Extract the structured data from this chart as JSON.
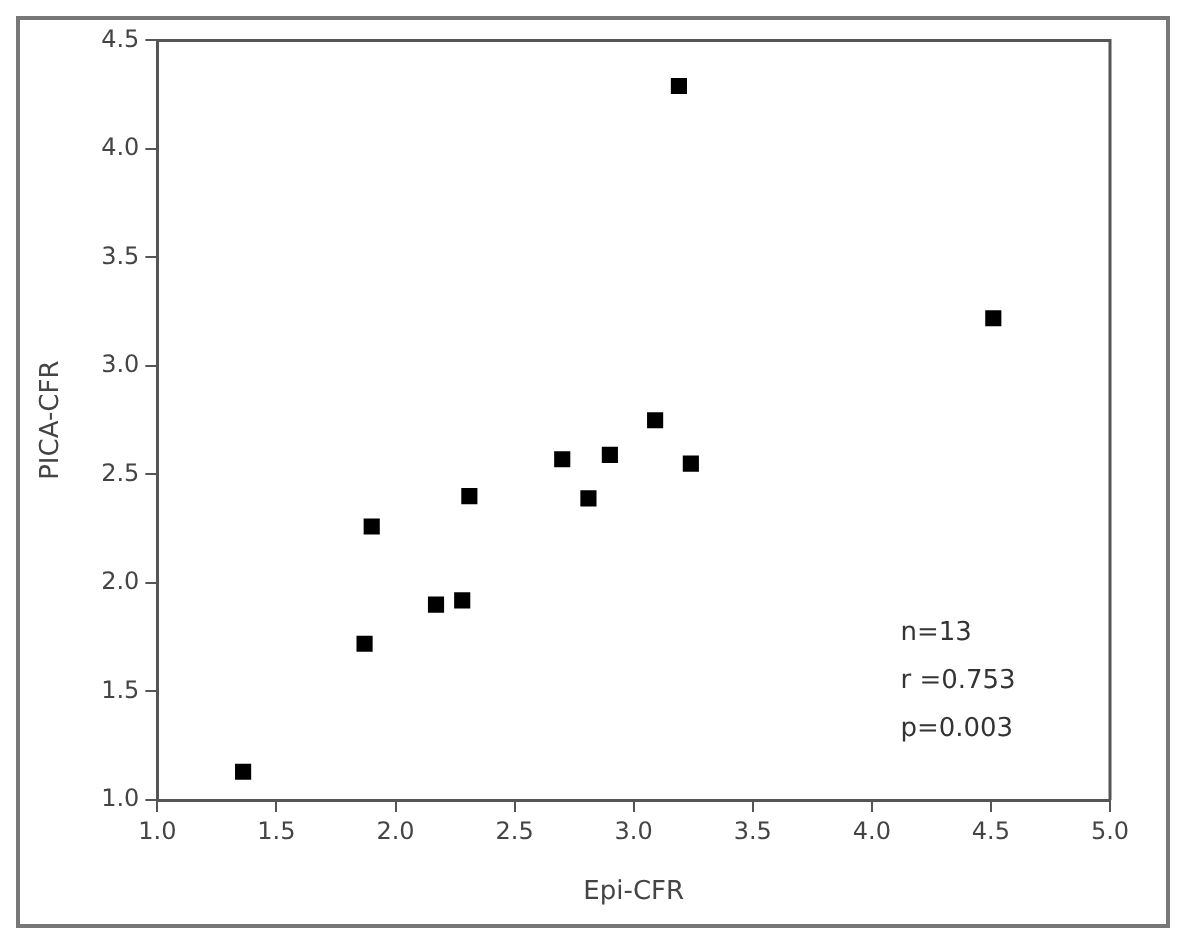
{
  "chart_data": {
    "type": "scatter",
    "xlabel": "Epi-CFR",
    "ylabel": "PICA-CFR",
    "x": [
      1.36,
      1.87,
      1.9,
      2.17,
      2.28,
      2.31,
      2.7,
      2.81,
      2.9,
      3.09,
      3.24,
      3.19,
      4.51
    ],
    "values": [
      1.13,
      1.72,
      2.26,
      1.9,
      1.92,
      2.4,
      2.57,
      2.39,
      2.59,
      2.75,
      2.55,
      4.29,
      3.22
    ],
    "color": "#000000",
    "marker": "square",
    "xlim": [
      1.0,
      5.0
    ],
    "xticks": [
      {
        "value": 1,
        "label": "1.0"
      },
      {
        "value": 1.5,
        "label": "1.5"
      },
      {
        "value": 2,
        "label": "2.0"
      },
      {
        "value": 2.5,
        "label": "2.5"
      },
      {
        "value": 3,
        "label": "3.0"
      },
      {
        "value": 3.5,
        "label": "3.5"
      },
      {
        "value": 4,
        "label": "4.0"
      },
      {
        "value": 4.5,
        "label": "4.5"
      },
      {
        "value": 5,
        "label": "5.0"
      }
    ],
    "ylim": [
      1.0,
      4.5
    ],
    "yticks": [
      {
        "value": 1,
        "label": "1.0"
      },
      {
        "value": 1.5,
        "label": "1.5"
      },
      {
        "value": 2,
        "label": "2.0"
      },
      {
        "value": 2.5,
        "label": "2.5"
      },
      {
        "value": 3,
        "label": "3.0"
      },
      {
        "value": 3.5,
        "label": "3.5"
      },
      {
        "value": 4,
        "label": "4.0"
      },
      {
        "value": 4.5,
        "label": "4.5"
      }
    ],
    "annotations": [
      "n=13",
      "r =0.753",
      "p=0.003"
    ],
    "grid": false,
    "legend": false
  }
}
